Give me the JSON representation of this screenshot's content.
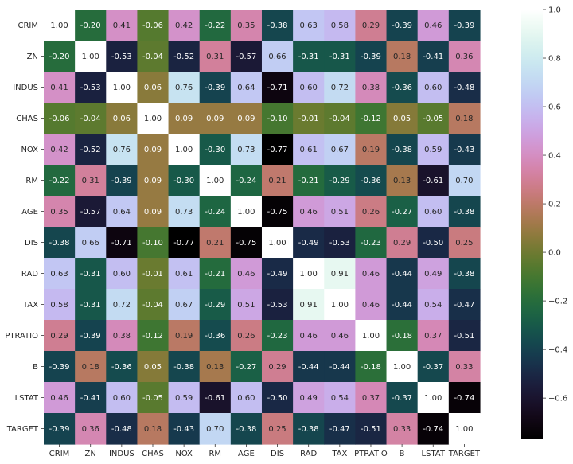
{
  "chart_data": {
    "type": "heatmap",
    "colormap": "cubehelix",
    "variables": [
      "CRIM",
      "ZN",
      "INDUS",
      "CHAS",
      "NOX",
      "RM",
      "AGE",
      "DIS",
      "RAD",
      "TAX",
      "PTRATIO",
      "B",
      "LSTAT",
      "TARGET"
    ],
    "values": [
      [
        1.0,
        -0.2,
        0.41,
        -0.06,
        0.42,
        -0.22,
        0.35,
        -0.38,
        0.63,
        0.58,
        0.29,
        -0.39,
        0.46,
        -0.39
      ],
      [
        -0.2,
        1.0,
        -0.53,
        -0.04,
        -0.52,
        0.31,
        -0.57,
        0.66,
        -0.31,
        -0.31,
        -0.39,
        0.18,
        -0.41,
        0.36
      ],
      [
        0.41,
        -0.53,
        1.0,
        0.06,
        0.76,
        -0.39,
        0.64,
        -0.71,
        0.6,
        0.72,
        0.38,
        -0.36,
        0.6,
        -0.48
      ],
      [
        -0.06,
        -0.04,
        0.06,
        1.0,
        0.09,
        0.09,
        0.09,
        -0.1,
        -0.01,
        -0.04,
        -0.12,
        0.05,
        -0.05,
        0.18
      ],
      [
        0.42,
        -0.52,
        0.76,
        0.09,
        1.0,
        -0.3,
        0.73,
        -0.77,
        0.61,
        0.67,
        0.19,
        -0.38,
        0.59,
        -0.43
      ],
      [
        -0.22,
        0.31,
        -0.39,
        0.09,
        -0.3,
        1.0,
        -0.24,
        0.21,
        -0.21,
        -0.29,
        -0.36,
        0.13,
        -0.61,
        0.7
      ],
      [
        0.35,
        -0.57,
        0.64,
        0.09,
        0.73,
        -0.24,
        1.0,
        -0.75,
        0.46,
        0.51,
        0.26,
        -0.27,
        0.6,
        -0.38
      ],
      [
        -0.38,
        0.66,
        -0.71,
        -0.1,
        -0.77,
        0.21,
        -0.75,
        1.0,
        -0.49,
        -0.53,
        -0.23,
        0.29,
        -0.5,
        0.25
      ],
      [
        0.63,
        -0.31,
        0.6,
        -0.01,
        0.61,
        -0.21,
        0.46,
        -0.49,
        1.0,
        0.91,
        0.46,
        -0.44,
        0.49,
        -0.38
      ],
      [
        0.58,
        -0.31,
        0.72,
        -0.04,
        0.67,
        -0.29,
        0.51,
        -0.53,
        0.91,
        1.0,
        0.46,
        -0.44,
        0.54,
        -0.47
      ],
      [
        0.29,
        -0.39,
        0.38,
        -0.12,
        0.19,
        -0.36,
        0.26,
        -0.23,
        0.46,
        0.46,
        1.0,
        -0.18,
        0.37,
        -0.51
      ],
      [
        -0.39,
        0.18,
        -0.36,
        0.05,
        -0.38,
        0.13,
        -0.27,
        0.29,
        -0.44,
        -0.44,
        -0.18,
        1.0,
        -0.37,
        0.33
      ],
      [
        0.46,
        -0.41,
        0.6,
        -0.05,
        0.59,
        -0.61,
        0.6,
        -0.5,
        0.49,
        0.54,
        0.37,
        -0.37,
        1.0,
        -0.74
      ],
      [
        -0.39,
        0.36,
        -0.48,
        0.18,
        -0.43,
        0.7,
        -0.38,
        0.25,
        -0.38,
        -0.47,
        -0.51,
        0.33,
        -0.74,
        1.0
      ]
    ],
    "vmin": -0.77,
    "vmax": 1.0,
    "colorbar": {
      "ticks": [
        1.0,
        0.8,
        0.6,
        0.4,
        0.2,
        0.0,
        -0.2,
        -0.4,
        -0.6
      ],
      "tick_labels": [
        "1.0",
        "0.8",
        "0.6",
        "0.4",
        "0.2",
        "0.0",
        "−0.2",
        "−0.4",
        "−0.6"
      ]
    },
    "grid": false,
    "legend": "colorbar-right",
    "annotation_format": "0.00"
  }
}
